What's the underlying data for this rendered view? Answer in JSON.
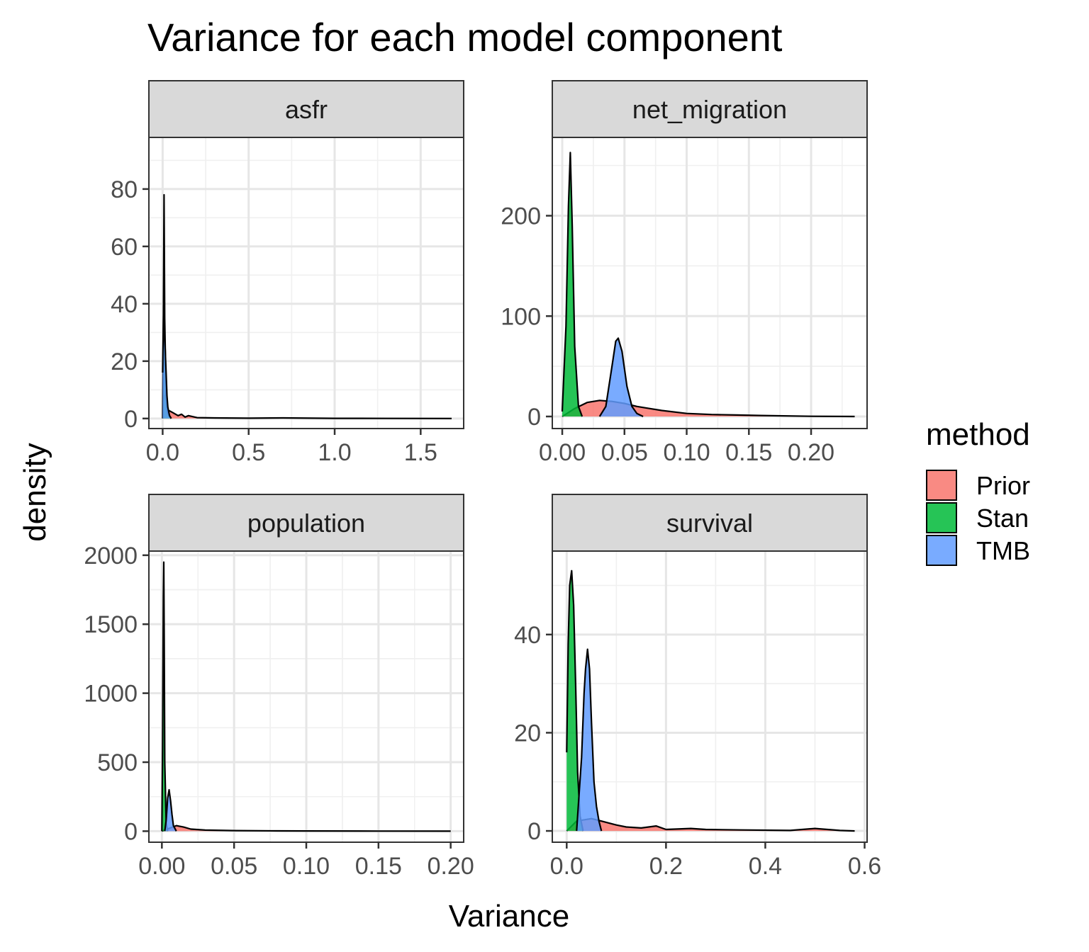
{
  "chart_data": {
    "type": "area",
    "title": "Variance for each model component",
    "xlabel": "Variance",
    "ylabel": "density",
    "grid": true,
    "legend": {
      "title": "method",
      "placement": "right",
      "entries": [
        {
          "name": "Prior",
          "color": "#F8766D"
        },
        {
          "name": "Stan",
          "color": "#00BA38"
        },
        {
          "name": "TMB",
          "color": "#619CFF"
        }
      ]
    },
    "panels": [
      {
        "name": "asfr",
        "xlim": [
          -0.08,
          1.75
        ],
        "ylim": [
          -3.5,
          98
        ],
        "xticks": [
          0,
          0.5,
          1.0,
          1.5
        ],
        "xtick_labels": [
          "0.0",
          "0.5",
          "1.0",
          "1.5"
        ],
        "yticks": [
          0,
          20,
          40,
          60,
          80
        ],
        "ytick_labels": [
          "0",
          "20",
          "40",
          "60",
          "80"
        ],
        "series": [
          {
            "name": "Prior",
            "x": [
              0.0,
              0.01,
              0.03,
              0.06,
              0.09,
              0.11,
              0.13,
              0.15,
              0.2,
              0.3,
              0.5,
              0.7,
              1.0,
              1.3,
              1.68
            ],
            "y": [
              6,
              8,
              3,
              2,
              1,
              1.5,
              0.5,
              1,
              0.3,
              0.2,
              0.1,
              0.2,
              0.05,
              0.02,
              0
            ]
          },
          {
            "name": "Stan",
            "x": [
              0.0,
              0.004,
              0.008,
              0.012,
              0.02,
              0.03,
              0.05
            ],
            "y": [
              0,
              30,
              78,
              35,
              8,
              2,
              0
            ]
          },
          {
            "name": "TMB",
            "x": [
              0.0,
              0.005,
              0.01,
              0.015,
              0.02,
              0.025,
              0.03,
              0.04,
              0.05
            ],
            "y": [
              16,
              36,
              30,
              24,
              16,
              8,
              4,
              1,
              0
            ]
          }
        ]
      },
      {
        "name": "net_migration",
        "xlim": [
          -0.008,
          0.245
        ],
        "ylim": [
          -12,
          278
        ],
        "xticks": [
          0.0,
          0.05,
          0.1,
          0.15,
          0.2
        ],
        "xtick_labels": [
          "0.00",
          "0.05",
          "0.10",
          "0.15",
          "0.20"
        ],
        "yticks": [
          0,
          100,
          200
        ],
        "ytick_labels": [
          "0",
          "100",
          "200"
        ],
        "series": [
          {
            "name": "Prior",
            "x": [
              0.0,
              0.01,
              0.02,
              0.03,
              0.04,
              0.05,
              0.06,
              0.07,
              0.08,
              0.1,
              0.12,
              0.14,
              0.16,
              0.2,
              0.235
            ],
            "y": [
              0,
              8,
              14,
              16,
              15,
              13,
              10,
              8,
              6,
              3,
              2,
              1.5,
              1,
              0.2,
              0
            ]
          },
          {
            "name": "Stan",
            "x": [
              0.0,
              0.003,
              0.005,
              0.0065,
              0.008,
              0.01,
              0.013,
              0.016
            ],
            "y": [
              5,
              90,
              210,
              263,
              190,
              70,
              10,
              0
            ]
          },
          {
            "name": "TMB",
            "x": [
              0.03,
              0.035,
              0.04,
              0.043,
              0.045,
              0.048,
              0.052,
              0.056,
              0.06,
              0.065
            ],
            "y": [
              0,
              10,
              50,
              75,
              78,
              65,
              30,
              10,
              3,
              0
            ]
          }
        ]
      },
      {
        "name": "population",
        "xlim": [
          -0.009,
          0.209
        ],
        "ylim": [
          -80,
          2030
        ],
        "xticks": [
          0.0,
          0.05,
          0.1,
          0.15,
          0.2
        ],
        "xtick_labels": [
          "0.00",
          "0.05",
          "0.10",
          "0.15",
          "0.20"
        ],
        "yticks": [
          0,
          500,
          1000,
          1500,
          2000
        ],
        "ytick_labels": [
          "0",
          "500",
          "1000",
          "1500",
          "2000"
        ],
        "series": [
          {
            "name": "Prior",
            "x": [
              0.0,
              0.005,
              0.01,
              0.015,
              0.02,
              0.03,
              0.05,
              0.08,
              0.1,
              0.15,
              0.2
            ],
            "y": [
              0,
              20,
              40,
              30,
              15,
              8,
              4,
              2,
              1.5,
              0.8,
              0
            ]
          },
          {
            "name": "Stan",
            "x": [
              0.0,
              0.0005,
              0.001,
              0.0013,
              0.0016,
              0.002,
              0.003,
              0.004
            ],
            "y": [
              0,
              600,
              1700,
              1950,
              1400,
              500,
              60,
              0
            ]
          },
          {
            "name": "TMB",
            "x": [
              0.002,
              0.003,
              0.004,
              0.005,
              0.006,
              0.007,
              0.008,
              0.01
            ],
            "y": [
              0,
              80,
              240,
              300,
              220,
              120,
              40,
              0
            ]
          }
        ]
      },
      {
        "name": "survival",
        "xlim": [
          -0.029,
          0.605
        ],
        "ylim": [
          -2.3,
          57
        ],
        "xticks": [
          0.0,
          0.2,
          0.4,
          0.6
        ],
        "xtick_labels": [
          "0.0",
          "0.2",
          "0.4",
          "0.6"
        ],
        "yticks": [
          0,
          20,
          40
        ],
        "ytick_labels": [
          "0",
          "20",
          "40"
        ],
        "series": [
          {
            "name": "Prior",
            "x": [
              0.0,
              0.02,
              0.05,
              0.07,
              0.1,
              0.12,
              0.15,
              0.18,
              0.2,
              0.25,
              0.28,
              0.35,
              0.45,
              0.5,
              0.55,
              0.58
            ],
            "y": [
              0,
              2,
              2.5,
              2,
              1.2,
              0.8,
              0.6,
              1,
              0.3,
              0.5,
              0.3,
              0.2,
              0.1,
              0.5,
              0.1,
              0
            ]
          },
          {
            "name": "Stan",
            "x": [
              0.0,
              0.003,
              0.006,
              0.01,
              0.014,
              0.018,
              0.022,
              0.027,
              0.033
            ],
            "y": [
              16,
              38,
              50,
              53,
              46,
              30,
              12,
              3,
              0
            ]
          },
          {
            "name": "TMB",
            "x": [
              0.02,
              0.03,
              0.035,
              0.038,
              0.042,
              0.046,
              0.05,
              0.055,
              0.06,
              0.065,
              0.07
            ],
            "y": [
              0,
              15,
              28,
              33,
              37,
              33,
              22,
              10,
              5,
              2,
              0
            ]
          }
        ]
      }
    ]
  }
}
